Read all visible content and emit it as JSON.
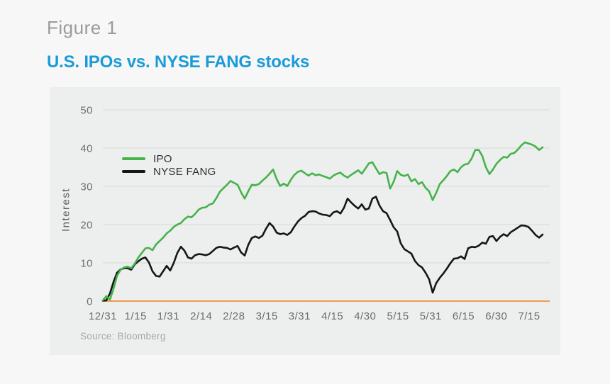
{
  "figure_label": "Figure 1",
  "title": "U.S. IPOs vs. NYSE FANG stocks",
  "source": "Source: Bloomberg",
  "colors": {
    "background": "#f7f7f7",
    "panel": "#edeeee",
    "title": "#1a9bd8",
    "figure_label": "#9b9b9b",
    "grid": "#d8d8d8",
    "zero_line": "#f29a4e",
    "axis_text": "#6e6e6e",
    "legend_text": "#2e2e2e",
    "source_text": "#a6a6a6"
  },
  "chart_data": {
    "type": "line",
    "title": "U.S. IPOs vs. NYSE FANG stocks",
    "xlabel": "",
    "ylabel": "Interest",
    "ylim": [
      0,
      50
    ],
    "yticks": [
      0,
      10,
      20,
      30,
      40,
      50
    ],
    "xticklabels": [
      "12/31",
      "1/15",
      "1/31",
      "2/14",
      "2/28",
      "3/15",
      "3/31",
      "4/15",
      "4/30",
      "5/15",
      "5/31",
      "6/15",
      "6/30",
      "7/15"
    ],
    "grid": "horizontal",
    "legend_position": "inside-top-left",
    "zero_axis_color": "#f29a4e",
    "series": [
      {
        "name": "IPO",
        "color": "#45b34b",
        "values": [
          0.2,
          1.3,
          0.4,
          3.2,
          6.6,
          8.2,
          8.8,
          9.0,
          8.6,
          9.8,
          11.4,
          12.6,
          13.8,
          13.9,
          13.3,
          14.8,
          15.7,
          16.6,
          17.7,
          18.4,
          19.4,
          20.0,
          20.4,
          21.4,
          22.1,
          21.9,
          22.8,
          23.9,
          24.4,
          24.5,
          25.2,
          25.5,
          26.9,
          28.6,
          29.5,
          30.4,
          31.4,
          30.9,
          30.4,
          28.4,
          26.8,
          28.7,
          30.4,
          30.3,
          30.6,
          31.5,
          32.3,
          33.3,
          34.4,
          31.9,
          30.1,
          30.7,
          30.1,
          31.7,
          33.0,
          33.8,
          34.1,
          33.4,
          32.8,
          33.4,
          32.9,
          33.1,
          32.7,
          32.4,
          32.0,
          32.8,
          33.3,
          33.6,
          32.8,
          32.3,
          33.0,
          33.6,
          34.2,
          33.3,
          34.6,
          36.0,
          36.3,
          34.7,
          33.2,
          33.7,
          33.5,
          29.4,
          31.2,
          34.0,
          33.0,
          32.7,
          33.1,
          31.3,
          31.9,
          30.6,
          31.1,
          29.6,
          28.7,
          26.4,
          28.3,
          30.6,
          31.6,
          32.7,
          34.0,
          34.4,
          33.7,
          35.0,
          35.7,
          35.9,
          37.3,
          39.5,
          39.5,
          37.9,
          35.0,
          33.2,
          34.4,
          35.9,
          36.9,
          37.7,
          37.5,
          38.5,
          38.7,
          39.6,
          40.7,
          41.5,
          41.2,
          40.9,
          40.4,
          39.5,
          40.2
        ]
      },
      {
        "name": "NYSE FANG",
        "color": "#161616",
        "values": [
          0.1,
          0.2,
          2.0,
          5.0,
          7.4,
          8.3,
          8.6,
          8.6,
          8.2,
          9.6,
          10.4,
          11.1,
          11.4,
          10.1,
          7.8,
          6.6,
          6.4,
          7.8,
          9.2,
          8.0,
          10.0,
          12.6,
          14.2,
          13.2,
          11.4,
          11.1,
          12.0,
          12.3,
          12.2,
          12.0,
          12.3,
          13.1,
          13.9,
          14.2,
          14.0,
          13.9,
          13.5,
          14.0,
          14.4,
          12.7,
          11.9,
          14.7,
          16.5,
          16.9,
          16.5,
          17.1,
          18.9,
          20.4,
          19.5,
          17.9,
          17.5,
          17.7,
          17.3,
          18.0,
          19.5,
          20.8,
          21.7,
          22.3,
          23.3,
          23.5,
          23.4,
          22.9,
          22.6,
          22.5,
          22.2,
          23.2,
          23.5,
          22.9,
          24.4,
          26.8,
          25.8,
          24.9,
          24.2,
          25.3,
          23.9,
          24.2,
          26.8,
          27.3,
          25.0,
          23.5,
          23.0,
          21.2,
          19.3,
          18.2,
          15.1,
          13.6,
          13.0,
          12.4,
          10.5,
          9.4,
          8.8,
          7.4,
          5.7,
          2.2,
          4.7,
          6.1,
          7.2,
          8.5,
          9.9,
          11.1,
          11.2,
          11.7,
          11.0,
          13.8,
          14.2,
          14.1,
          14.5,
          15.3,
          15.0,
          16.8,
          17.0,
          15.7,
          16.8,
          17.5,
          17.0,
          18.0,
          18.6,
          19.2,
          19.8,
          19.7,
          19.4,
          18.4,
          17.3,
          16.6,
          17.4
        ]
      }
    ]
  }
}
